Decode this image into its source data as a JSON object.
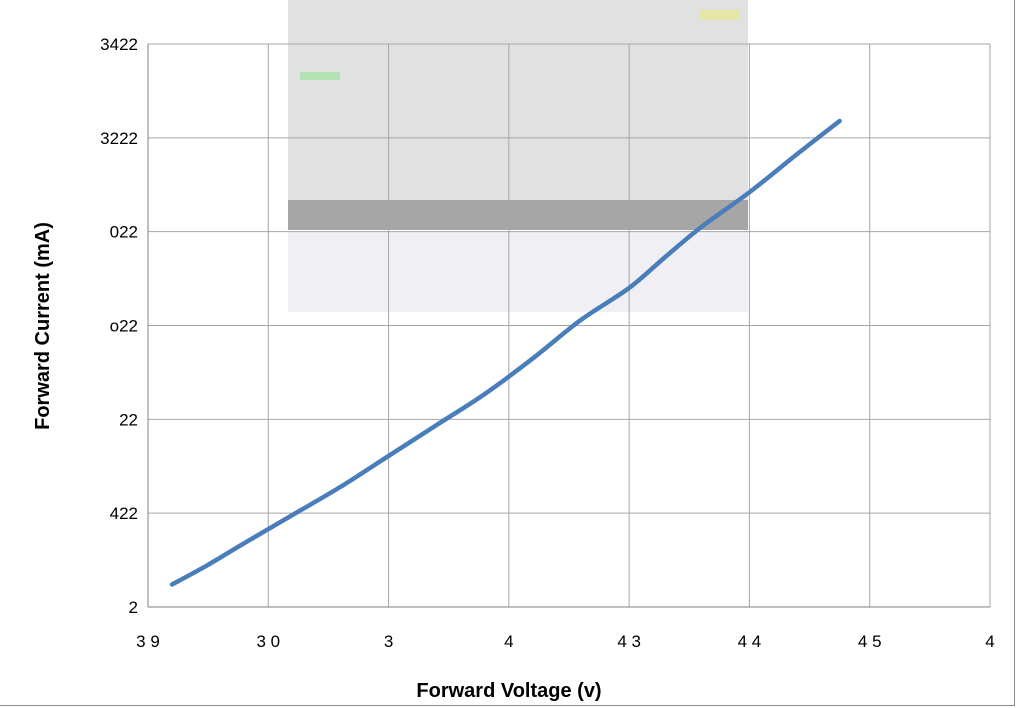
{
  "chart_data": {
    "type": "line",
    "xlabel": "Forward Voltage (v)",
    "ylabel": "Forward Current  (mA)",
    "x_tick_labels": [
      "3 9",
      "3 0",
      "3",
      "4",
      "4 3",
      "4 4",
      "4 5",
      "4"
    ],
    "y_tick_labels": [
      "2",
      "422",
      "22",
      "o22",
      "022",
      "3222",
      "3422"
    ],
    "xlim": [
      0,
      7
    ],
    "ylim": [
      0,
      6
    ],
    "grid": true,
    "legend": "none",
    "series": [
      {
        "color": "#4a7ebb",
        "x": [
          0.2,
          0.5,
          0.8,
          1.2,
          1.6,
          2.0,
          2.4,
          2.8,
          3.2,
          3.6,
          4.0,
          4.3,
          4.6,
          5.0,
          5.4,
          5.75
        ],
        "y": [
          0.24,
          0.45,
          0.68,
          0.98,
          1.28,
          1.61,
          1.94,
          2.27,
          2.65,
          3.06,
          3.4,
          3.73,
          4.05,
          4.42,
          4.83,
          5.18
        ]
      }
    ]
  }
}
